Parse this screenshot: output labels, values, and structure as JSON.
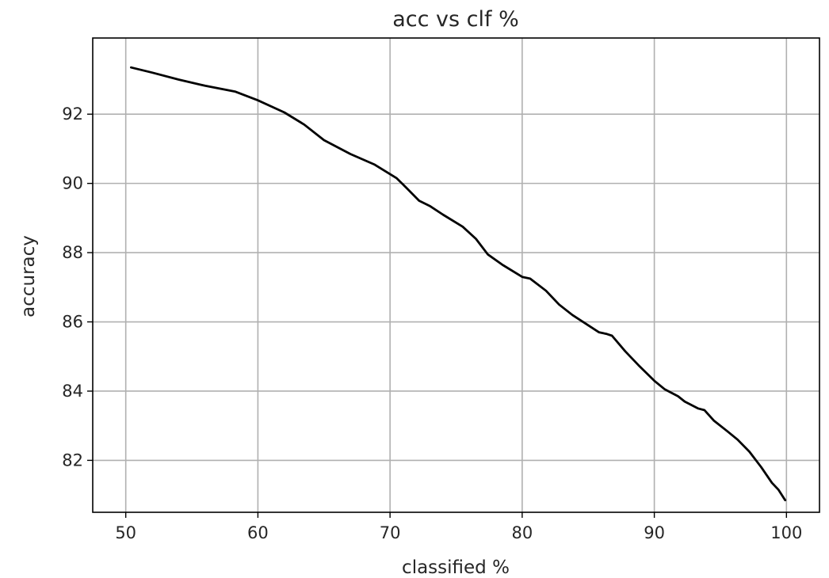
{
  "chart_data": {
    "type": "line",
    "title": "acc vs clf %",
    "xlabel": "classified %",
    "ylabel": "accuracy",
    "xlim": [
      47.5,
      102.5
    ],
    "ylim": [
      80.5,
      94.2
    ],
    "xticks": [
      50,
      60,
      70,
      80,
      90,
      100
    ],
    "xtick_labels": [
      "50",
      "60",
      "70",
      "80",
      "90",
      "100"
    ],
    "yticks": [
      82,
      84,
      86,
      88,
      90,
      92
    ],
    "ytick_labels": [
      "82",
      "84",
      "86",
      "88",
      "90",
      "92"
    ],
    "grid": true,
    "line_color": "#000000",
    "series": [
      {
        "x": [
          50.4,
          52,
          54,
          56,
          58.3,
          60,
          62,
          63.5,
          65,
          67,
          68.8,
          70.5,
          71.3,
          72.2,
          73,
          74,
          75.5,
          76.5,
          77.4,
          78.5,
          80,
          80.6,
          81.8,
          82.8,
          83.8,
          84.8,
          85.8,
          86.4,
          86.8,
          87.8,
          88.8,
          90,
          90.8,
          91.8,
          92.3,
          93.3,
          93.8,
          94.5,
          95.5,
          96.3,
          97.2,
          98.1,
          98.9,
          99.4,
          99.9
        ],
        "y": [
          93.35,
          93.2,
          93.0,
          92.82,
          92.65,
          92.4,
          92.05,
          91.7,
          91.25,
          90.85,
          90.55,
          90.15,
          89.85,
          89.5,
          89.35,
          89.1,
          88.75,
          88.4,
          87.95,
          87.65,
          87.3,
          87.25,
          86.9,
          86.5,
          86.2,
          85.95,
          85.7,
          85.65,
          85.6,
          85.15,
          84.75,
          84.3,
          84.05,
          83.85,
          83.7,
          83.5,
          83.45,
          83.15,
          82.85,
          82.6,
          82.25,
          81.8,
          81.35,
          81.15,
          80.85
        ]
      }
    ]
  }
}
